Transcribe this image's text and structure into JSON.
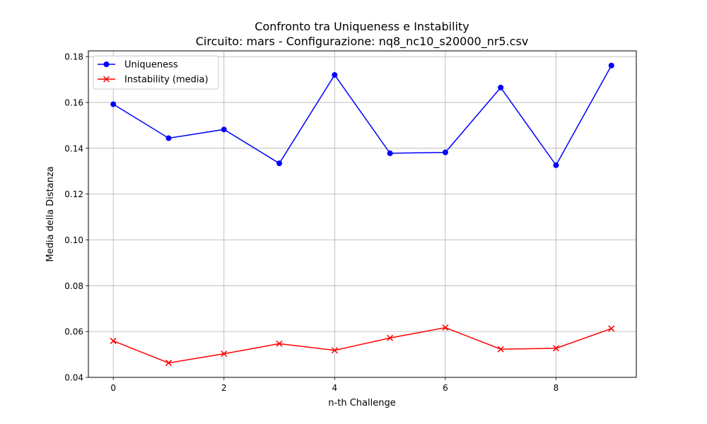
{
  "chart_data": {
    "type": "line",
    "title": "Confronto tra Uniqueness e Instability",
    "subtitle": "Circuito: mars - Configurazione: nq8_nc10_s20000_nr5.csv",
    "xlabel": "n-th Challenge",
    "ylabel": "Media della Distanza",
    "x": [
      0,
      1,
      2,
      3,
      4,
      5,
      6,
      7,
      8,
      9
    ],
    "xlim": [
      -0.45,
      9.45
    ],
    "ylim": [
      0.04,
      0.1825
    ],
    "xticks": [
      0,
      2,
      4,
      6,
      8
    ],
    "xtick_labels": [
      "0",
      "2",
      "4",
      "6",
      "8"
    ],
    "yticks": [
      0.04,
      0.06,
      0.08,
      0.1,
      0.12,
      0.14,
      0.16,
      0.18
    ],
    "ytick_labels": [
      "0.04",
      "0.06",
      "0.08",
      "0.10",
      "0.12",
      "0.14",
      "0.16",
      "0.18"
    ],
    "grid": true,
    "legend_position": "upper-left",
    "series": [
      {
        "name": "Uniqueness",
        "color": "#0000ff",
        "marker": "circle",
        "values": [
          0.1592,
          0.1444,
          0.1482,
          0.1334,
          0.172,
          0.1378,
          0.1382,
          0.1665,
          0.1326,
          0.1761
        ]
      },
      {
        "name": "Instability (media)",
        "color": "#ff0000",
        "marker": "x",
        "values": [
          0.0559,
          0.0463,
          0.0503,
          0.0547,
          0.0518,
          0.0572,
          0.0617,
          0.0523,
          0.0527,
          0.0613
        ]
      }
    ]
  }
}
